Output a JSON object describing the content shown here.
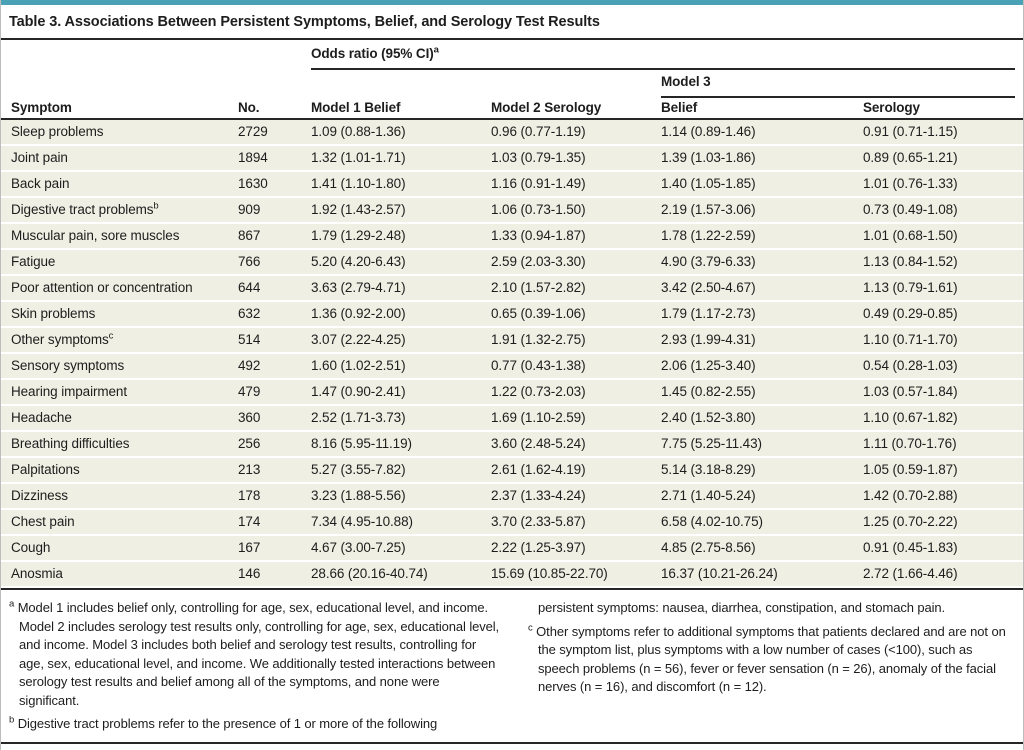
{
  "colors": {
    "accent": "#4AA1B5",
    "row-bg": "#F0EFE3",
    "rule": "#262626",
    "border": "#BDBDBD"
  },
  "title": "Table 3. Associations Between Persistent Symptoms, Belief, and Serology Test Results",
  "header": {
    "odds_ratio_label": "Odds ratio (95% CI)",
    "odds_ratio_sup": "a",
    "model3_label": "Model 3",
    "columns": {
      "symptom": "Symptom",
      "no": "No.",
      "model1": "Model 1 Belief",
      "model2": "Model 2 Serology",
      "model3_belief": "Belief",
      "model3_serology": "Serology"
    }
  },
  "table": {
    "rows": [
      {
        "symptom": "Sleep problems",
        "no": "2729",
        "model1": "1.09 (0.88-1.36)",
        "model2": "0.96 (0.77-1.19)",
        "model3_belief": "1.14 (0.89-1.46)",
        "model3_serology": "0.91 (0.71-1.15)"
      },
      {
        "symptom": "Joint pain",
        "no": "1894",
        "model1": "1.32 (1.01-1.71)",
        "model2": "1.03 (0.79-1.35)",
        "model3_belief": "1.39 (1.03-1.86)",
        "model3_serology": "0.89 (0.65-1.21)"
      },
      {
        "symptom": "Back pain",
        "no": "1630",
        "model1": "1.41 (1.10-1.80)",
        "model2": "1.16 (0.91-1.49)",
        "model3_belief": "1.40 (1.05-1.85)",
        "model3_serology": "1.01 (0.76-1.33)"
      },
      {
        "symptom": "Digestive tract problems",
        "sup": "b",
        "no": "909",
        "model1": "1.92 (1.43-2.57)",
        "model2": "1.06 (0.73-1.50)",
        "model3_belief": "2.19 (1.57-3.06)",
        "model3_serology": "0.73 (0.49-1.08)"
      },
      {
        "symptom": "Muscular pain, sore muscles",
        "no": "867",
        "model1": "1.79 (1.29-2.48)",
        "model2": "1.33 (0.94-1.87)",
        "model3_belief": "1.78 (1.22-2.59)",
        "model3_serology": "1.01 (0.68-1.50)"
      },
      {
        "symptom": "Fatigue",
        "no": "766",
        "model1": "5.20 (4.20-6.43)",
        "model2": "2.59 (2.03-3.30)",
        "model3_belief": "4.90 (3.79-6.33)",
        "model3_serology": "1.13 (0.84-1.52)"
      },
      {
        "symptom": "Poor attention or concentration",
        "no": "644",
        "model1": "3.63 (2.79-4.71)",
        "model2": "2.10 (1.57-2.82)",
        "model3_belief": "3.42 (2.50-4.67)",
        "model3_serology": "1.13 (0.79-1.61)"
      },
      {
        "symptom": "Skin problems",
        "no": "632",
        "model1": "1.36 (0.92-2.00)",
        "model2": "0.65 (0.39-1.06)",
        "model3_belief": "1.79 (1.17-2.73)",
        "model3_serology": "0.49 (0.29-0.85)"
      },
      {
        "symptom": "Other symptoms",
        "sup": "c",
        "no": "514",
        "model1": "3.07 (2.22-4.25)",
        "model2": "1.91 (1.32-2.75)",
        "model3_belief": "2.93 (1.99-4.31)",
        "model3_serology": "1.10 (0.71-1.70)"
      },
      {
        "symptom": "Sensory symptoms",
        "no": "492",
        "model1": "1.60 (1.02-2.51)",
        "model2": "0.77 (0.43-1.38)",
        "model3_belief": "2.06 (1.25-3.40)",
        "model3_serology": "0.54 (0.28-1.03)"
      },
      {
        "symptom": "Hearing impairment",
        "no": "479",
        "model1": "1.47 (0.90-2.41)",
        "model2": "1.22 (0.73-2.03)",
        "model3_belief": "1.45 (0.82-2.55)",
        "model3_serology": "1.03 (0.57-1.84)"
      },
      {
        "symptom": "Headache",
        "no": "360",
        "model1": "2.52 (1.71-3.73)",
        "model2": "1.69 (1.10-2.59)",
        "model3_belief": "2.40 (1.52-3.80)",
        "model3_serology": "1.10 (0.67-1.82)"
      },
      {
        "symptom": "Breathing difficulties",
        "no": "256",
        "model1": "8.16 (5.95-11.19)",
        "model2": "3.60 (2.48-5.24)",
        "model3_belief": "7.75 (5.25-11.43)",
        "model3_serology": "1.11 (0.70-1.76)"
      },
      {
        "symptom": "Palpitations",
        "no": "213",
        "model1": "5.27 (3.55-7.82)",
        "model2": "2.61 (1.62-4.19)",
        "model3_belief": "5.14 (3.18-8.29)",
        "model3_serology": "1.05 (0.59-1.87)"
      },
      {
        "symptom": "Dizziness",
        "no": "178",
        "model1": "3.23 (1.88-5.56)",
        "model2": "2.37 (1.33-4.24)",
        "model3_belief": "2.71 (1.40-5.24)",
        "model3_serology": "1.42 (0.70-2.88)"
      },
      {
        "symptom": "Chest pain",
        "no": "174",
        "model1": "7.34 (4.95-10.88)",
        "model2": "3.70 (2.33-5.87)",
        "model3_belief": "6.58 (4.02-10.75)",
        "model3_serology": "1.25 (0.70-2.22)"
      },
      {
        "symptom": "Cough",
        "no": "167",
        "model1": "4.67 (3.00-7.25)",
        "model2": "2.22 (1.25-3.97)",
        "model3_belief": "4.85 (2.75-8.56)",
        "model3_serology": "0.91 (0.45-1.83)"
      },
      {
        "symptom": "Anosmia",
        "no": "146",
        "model1": "28.66 (20.16-40.74)",
        "model2": "15.69 (10.85-22.70)",
        "model3_belief": "16.37 (10.21-26.24)",
        "model3_serology": "2.72 (1.66-4.46)"
      }
    ]
  },
  "footnotes": {
    "left": [
      {
        "marker": "a",
        "text": "Model 1 includes belief only, controlling for age, sex, educational level, and income. Model 2 includes serology test results only, controlling for age, sex, educational level, and income. Model 3 includes both belief and serology test results, controlling for age, sex, educational level, and income. We additionally tested interactions between serology test results and belief among all of the symptoms, and none were significant."
      },
      {
        "marker": "b",
        "text": "Digestive tract problems refer to the presence of 1 or more of the following"
      }
    ],
    "right": [
      {
        "marker": "",
        "text": "persistent symptoms: nausea, diarrhea, constipation, and stomach pain."
      },
      {
        "marker": "c",
        "text": "Other symptoms refer to additional symptoms that patients declared and are not on the symptom list, plus symptoms with a low number of cases (<100), such as speech problems (n = 56), fever or fever sensation (n = 26), anomaly of the facial nerves (n = 16), and discomfort (n = 12)."
      }
    ]
  }
}
